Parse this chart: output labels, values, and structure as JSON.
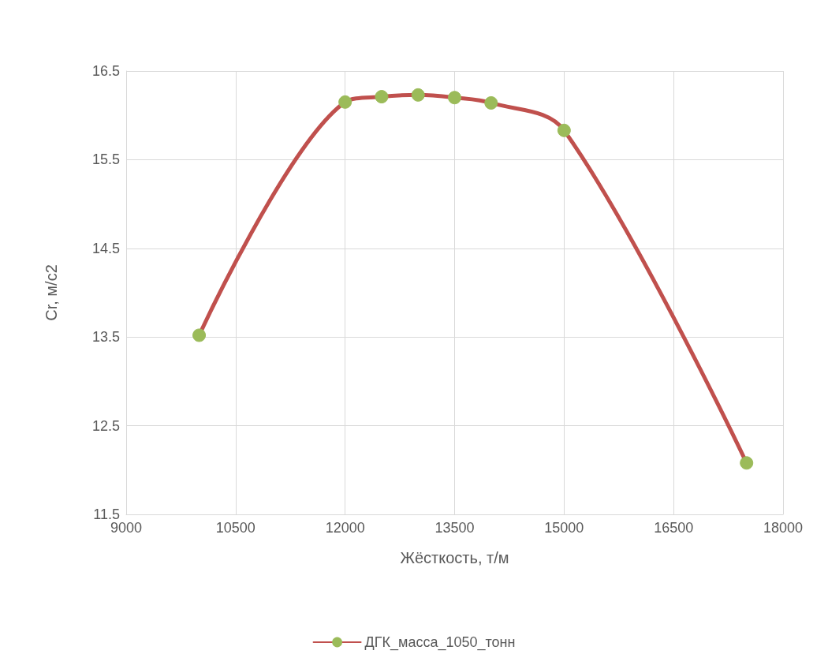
{
  "chart_data": {
    "type": "line",
    "xlabel": "Жёсткость, т/м",
    "ylabel": "Cr, м/с2",
    "x": [
      10000,
      12000,
      12500,
      13000,
      13500,
      14000,
      15000,
      17500
    ],
    "series": [
      {
        "name": "ДГК_масса_1050_тонн",
        "color": "#c0504d",
        "colors": [
          "#9bbb59",
          "#9bbb59",
          "#9bbb59",
          "#9bbb59",
          "#9bbb59",
          "#9bbb59",
          "#9bbb59",
          "#9bbb59"
        ],
        "values": [
          13.52,
          16.15,
          16.21,
          16.23,
          16.2,
          16.14,
          15.83,
          12.08
        ]
      }
    ],
    "xlim": [
      9000,
      18000
    ],
    "xticks": [
      9000,
      10500,
      12000,
      13500,
      15000,
      16500,
      18000
    ],
    "ylim": [
      11.5,
      16.5
    ],
    "yticks": [
      11.5,
      12.5,
      13.5,
      14.5,
      15.5,
      16.5
    ],
    "grid": true,
    "legend": "bottom",
    "marker": "circle",
    "line_style": "solid"
  }
}
